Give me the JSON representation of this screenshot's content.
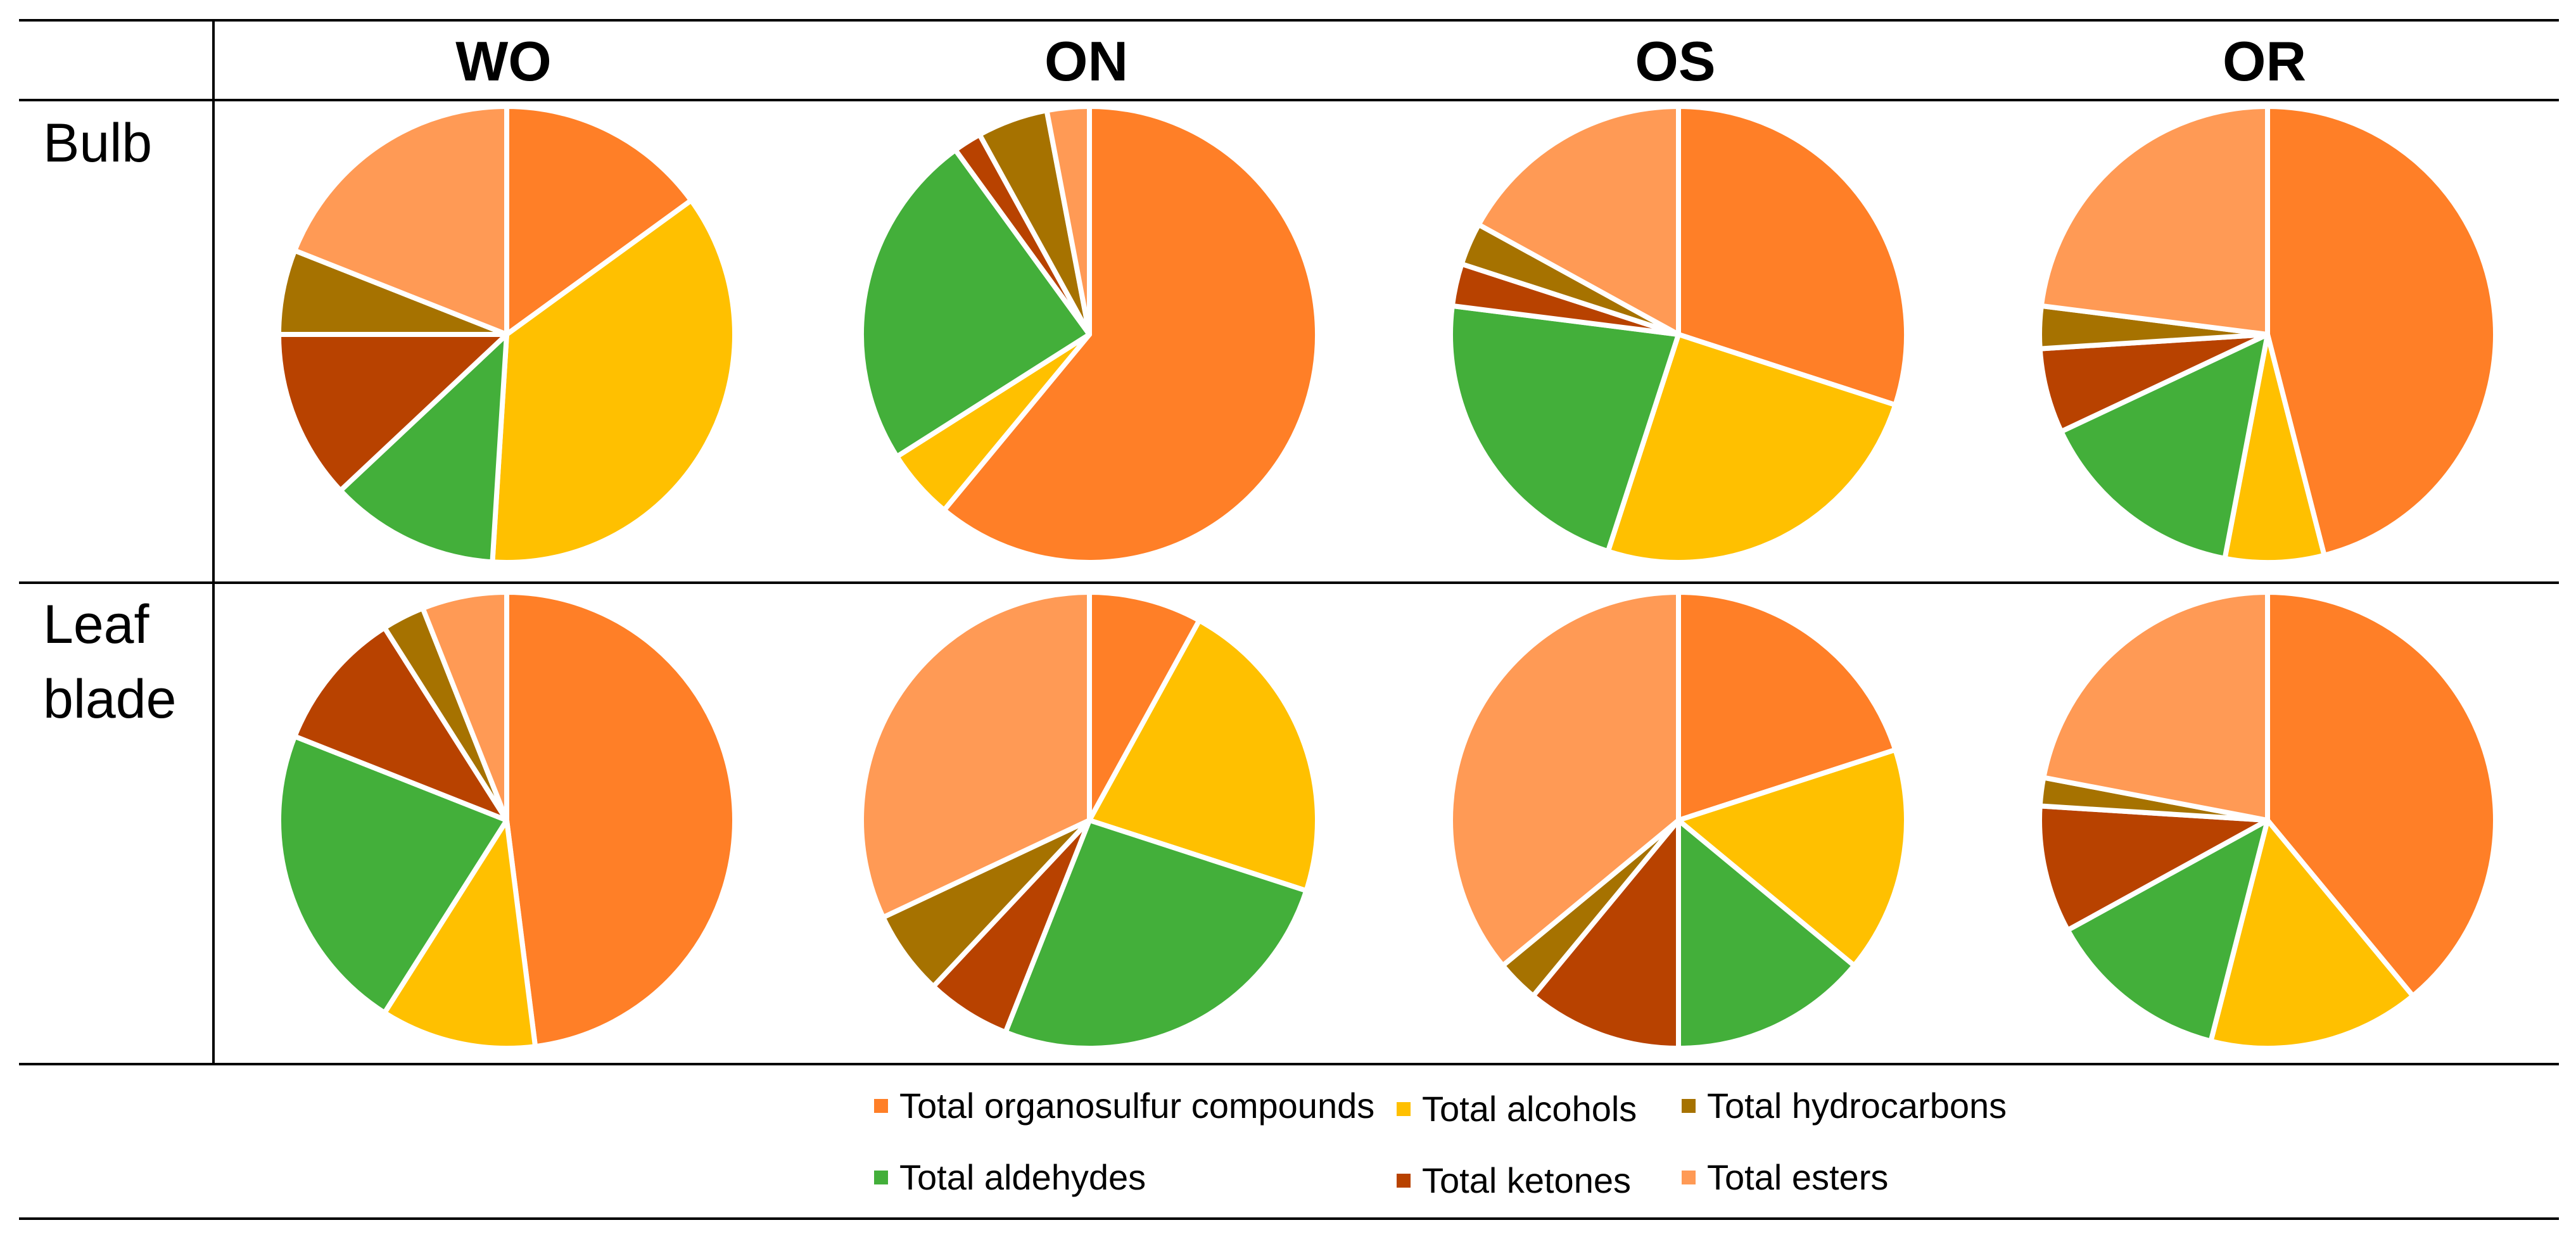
{
  "chart_data": {
    "type": "pie",
    "columns": [
      "WO",
      "ON",
      "OS",
      "OR"
    ],
    "rows": [
      "Bulb",
      "Leaf blade"
    ],
    "legend": [
      {
        "label": "Total organosulfur compounds",
        "color": "#FF7F27"
      },
      {
        "label": "Total alcohols",
        "color": "#FFC000"
      },
      {
        "label": "Total hydrocarbons",
        "color": "#A67200"
      },
      {
        "label": "Total aldehydes",
        "color": "#43AF3A"
      },
      {
        "label": "Total ketones",
        "color": "#B84200"
      },
      {
        "label": "Total esters",
        "color": "#FF9A55"
      }
    ],
    "slice_order": [
      "Total organosulfur compounds",
      "Total alcohols",
      "Total aldehydes",
      "Total ketones",
      "Total hydrocarbons",
      "Total esters"
    ],
    "panels": [
      {
        "row": "Bulb",
        "column": "WO",
        "values": [
          15,
          36,
          12,
          12,
          6,
          19
        ]
      },
      {
        "row": "Bulb",
        "column": "ON",
        "values": [
          61,
          5,
          24,
          2,
          5,
          3
        ]
      },
      {
        "row": "Bulb",
        "column": "OS",
        "values": [
          30,
          25,
          22,
          3,
          3,
          17
        ]
      },
      {
        "row": "Bulb",
        "column": "OR",
        "values": [
          46,
          7,
          15,
          6,
          3,
          23
        ]
      },
      {
        "row": "Leaf blade",
        "column": "WO",
        "values": [
          48,
          11,
          22,
          10,
          3,
          6
        ]
      },
      {
        "row": "Leaf blade",
        "column": "ON",
        "values": [
          8,
          22,
          26,
          6,
          6,
          32
        ]
      },
      {
        "row": "Leaf blade",
        "column": "OS",
        "values": [
          20,
          16,
          14,
          11,
          3,
          36
        ]
      },
      {
        "row": "Leaf blade",
        "column": "OR",
        "values": [
          39,
          15,
          13,
          9,
          2,
          22
        ]
      }
    ]
  }
}
